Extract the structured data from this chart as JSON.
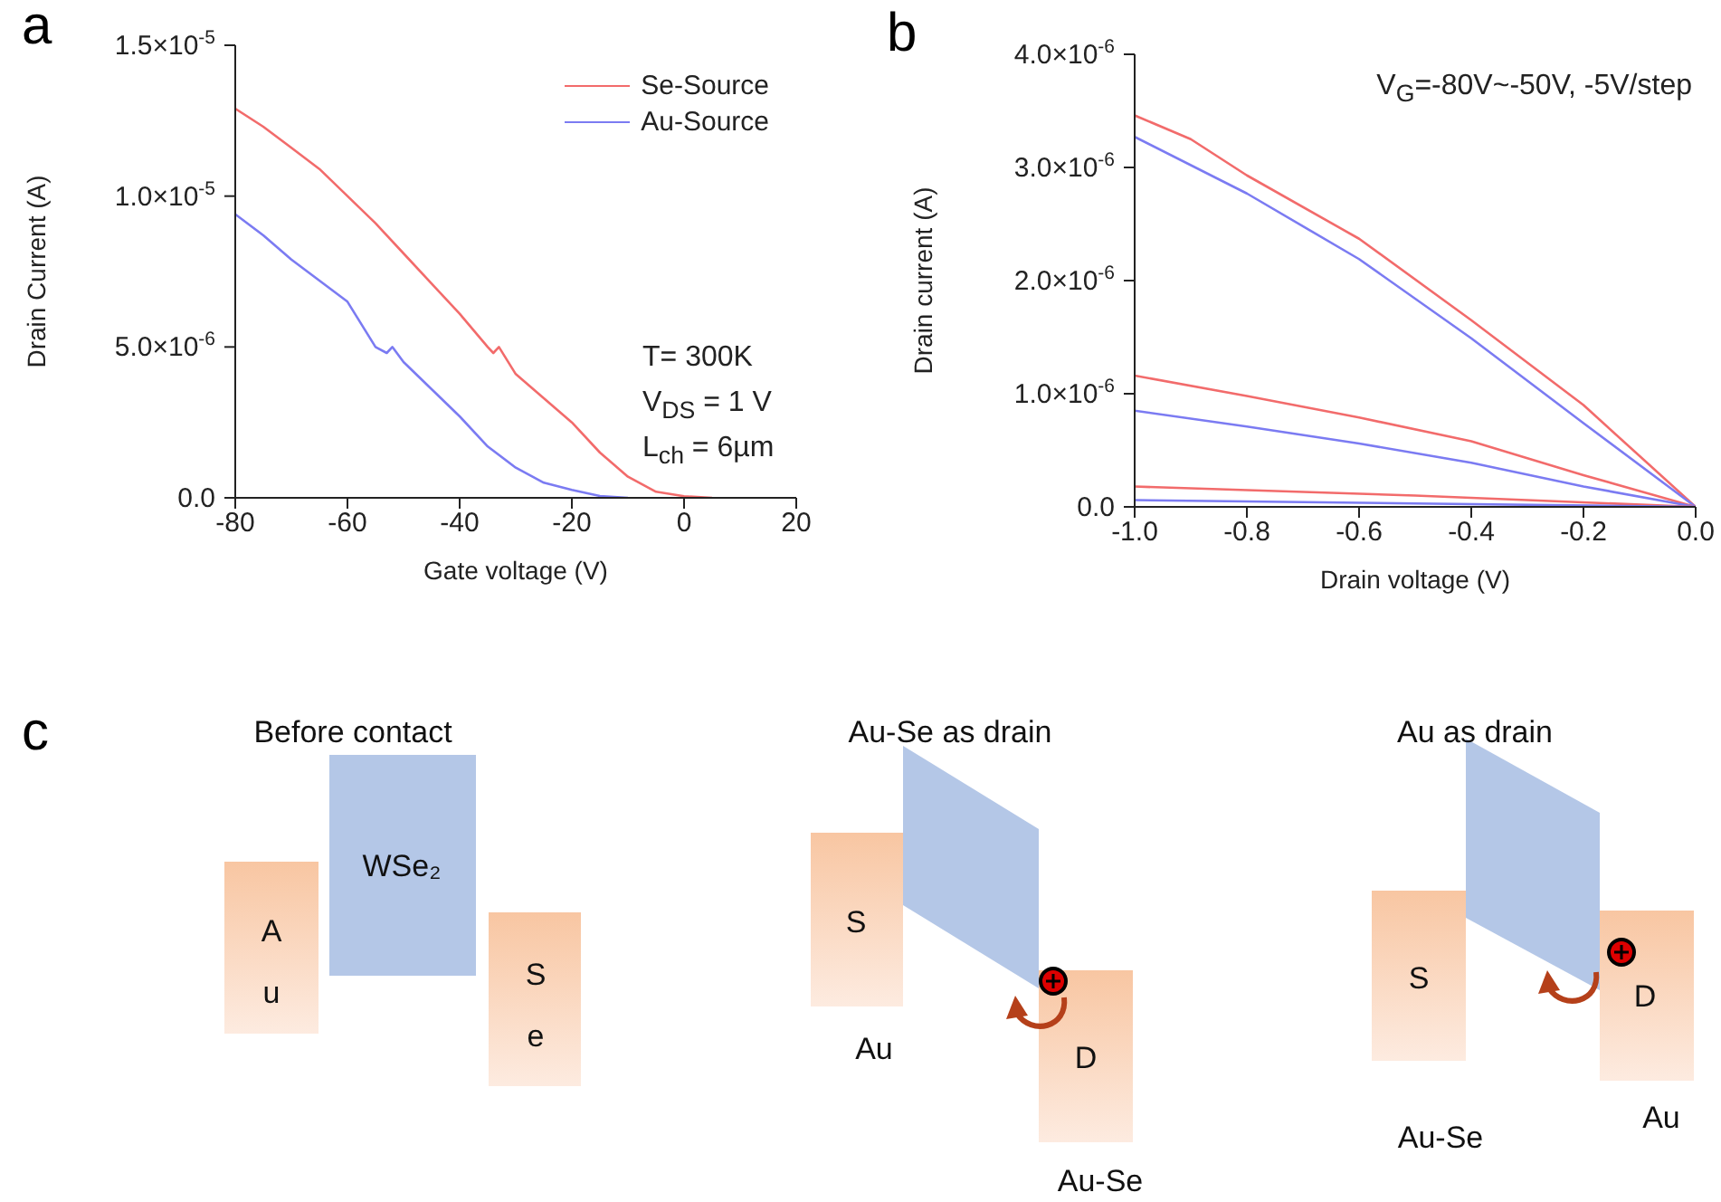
{
  "chart_data": [
    {
      "type": "line",
      "title": "a",
      "xlabel": "Gate voltage (V)",
      "ylabel": "Drain Current (A)",
      "xlim": [
        -80,
        20
      ],
      "xticks": [
        -80,
        -60,
        -40,
        -20,
        0,
        20
      ],
      "ylim": [
        0,
        1.5e-05
      ],
      "yticks": [
        {
          "value": 0,
          "label": "0.0"
        },
        {
          "value": 5e-06,
          "label": "5.0×10$^{-6}$"
        },
        {
          "value": 1e-05,
          "label": "1.0×10$^{-5}$"
        },
        {
          "value": 1.5e-05,
          "label": "1.5×10$^{-5}$"
        }
      ],
      "legend": "top right",
      "marker": "none",
      "grid": false,
      "annotations": [
        "T= 300K",
        "V$_{DS}$ = 1 V",
        "L$_{ch}$ = 6µm"
      ],
      "series": [
        {
          "name": "Se-Source",
          "color": "#f26b6b",
          "x": [
            -80,
            -75,
            -70,
            -65,
            -60,
            -55,
            -50,
            -45,
            -40,
            -35,
            -34,
            -33,
            -30,
            -25,
            -20,
            -15,
            -10,
            -5,
            0,
            5
          ],
          "values": [
            1.29e-05,
            1.23e-05,
            1.16e-05,
            1.09e-05,
            1e-05,
            9.1e-06,
            8.1e-06,
            7.1e-06,
            6.1e-06,
            5e-06,
            4.8e-06,
            5e-06,
            4.1e-06,
            3.3e-06,
            2.5e-06,
            1.5e-06,
            7e-07,
            2e-07,
            5e-08,
            0
          ]
        },
        {
          "name": "Au-Source",
          "color": "#7b7bf2",
          "x": [
            -80,
            -75,
            -70,
            -65,
            -60,
            -55,
            -53,
            -52,
            -50,
            -45,
            -40,
            -35,
            -30,
            -25,
            -20,
            -15,
            -10
          ],
          "values": [
            9.4e-06,
            8.7e-06,
            7.9e-06,
            7.2e-06,
            6.5e-06,
            5e-06,
            4.8e-06,
            5e-06,
            4.5e-06,
            3.6e-06,
            2.7e-06,
            1.7e-06,
            1e-06,
            5e-07,
            2.6e-07,
            6e-08,
            0
          ]
        }
      ]
    },
    {
      "type": "line",
      "title": "b",
      "xlabel": "Drain voltage (V)",
      "ylabel": "Drain current (A)",
      "xlim": [
        -1,
        0
      ],
      "xticks": [
        {
          "value": -1,
          "label": "-1.0"
        },
        {
          "value": -0.8,
          "label": "-0.8"
        },
        {
          "value": -0.6,
          "label": "-0.6"
        },
        {
          "value": -0.4,
          "label": "-0.4"
        },
        {
          "value": -0.2,
          "label": "-0.2"
        },
        {
          "value": 0,
          "label": "0.0"
        }
      ],
      "ylim": [
        0,
        4e-06
      ],
      "yticks": [
        {
          "value": 0,
          "label": "0.0"
        },
        {
          "value": 1e-06,
          "label": "1.0×10$^{-6}$"
        },
        {
          "value": 2e-06,
          "label": "2.0×10$^{-6}$"
        },
        {
          "value": 3e-06,
          "label": "3.0×10$^{-6}$"
        },
        {
          "value": 4e-06,
          "label": "4.0×10$^{-6}$"
        }
      ],
      "legend": false,
      "marker": "none",
      "grid": false,
      "annotations": [
        "V$_{G}$=-80V~-50V, -5V/step"
      ],
      "series": [
        {
          "color": "#f26b6b",
          "x": [
            -1,
            -0.9,
            -0.8,
            -0.6,
            -0.4,
            -0.2,
            0
          ],
          "values": [
            3.46e-06,
            3.25e-06,
            2.93e-06,
            2.37e-06,
            1.65e-06,
            9e-07,
            0
          ]
        },
        {
          "color": "#7b7bf2",
          "x": [
            -1,
            -0.8,
            -0.6,
            -0.4,
            -0.2,
            0
          ],
          "values": [
            3.27e-06,
            2.77e-06,
            2.19e-06,
            1.49e-06,
            7.4e-07,
            0
          ]
        },
        {
          "color": "#f26b6b",
          "x": [
            -1,
            -0.8,
            -0.6,
            -0.4,
            -0.2,
            0
          ],
          "values": [
            1.16e-06,
            9.8e-07,
            7.9e-07,
            5.8e-07,
            2.8e-07,
            0
          ]
        },
        {
          "color": "#7b7bf2",
          "x": [
            -1,
            -0.8,
            -0.6,
            -0.4,
            -0.2,
            0
          ],
          "values": [
            8.5e-07,
            7.1e-07,
            5.6e-07,
            3.9e-07,
            1.8e-07,
            0
          ]
        },
        {
          "color": "#f26b6b",
          "x": [
            -1,
            -0.5,
            0
          ],
          "values": [
            1.8e-07,
            1e-07,
            0
          ]
        },
        {
          "color": "#7b7bf2",
          "x": [
            -1,
            -0.5,
            0
          ],
          "values": [
            6e-08,
            3e-08,
            0
          ]
        }
      ]
    },
    {
      "type": "other",
      "title": "c",
      "annotations": [
        "Before contact",
        "Au-Se as drain",
        "Au as drain",
        "Au",
        "WSe₂",
        "Se",
        "S",
        "Au",
        "D",
        "Au-Se",
        "S",
        "Au-Se",
        "D",
        "Au"
      ]
    }
  ]
}
